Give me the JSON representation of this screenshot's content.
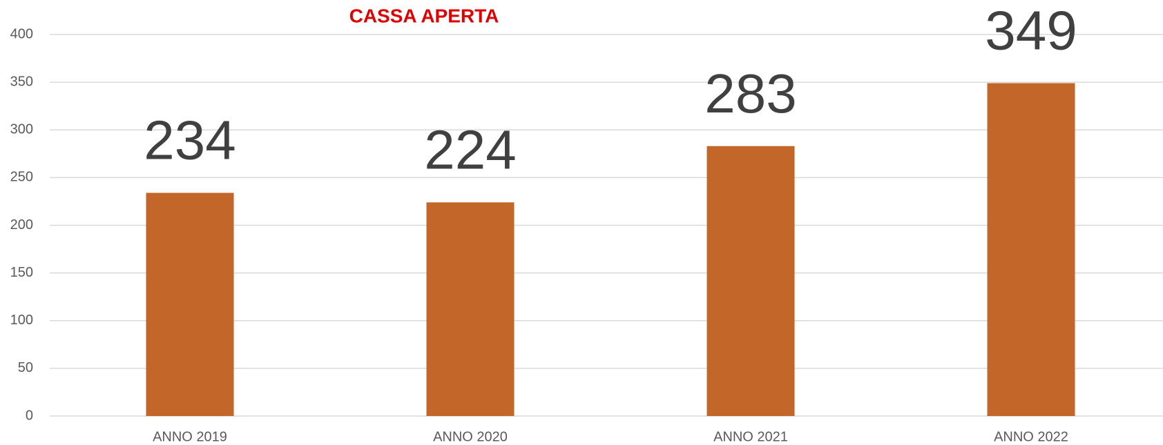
{
  "chart_data": {
    "type": "bar",
    "title": "CASSA APERTA",
    "categories": [
      "ANNO 2019",
      "ANNO 2020",
      "ANNO 2021",
      "ANNO 2022"
    ],
    "values": [
      234,
      224,
      283,
      349
    ],
    "color": "#c3662a",
    "ylim": [
      0,
      400
    ],
    "yticks": [
      0,
      50,
      100,
      150,
      200,
      250,
      300,
      350,
      400
    ],
    "grid": true
  }
}
